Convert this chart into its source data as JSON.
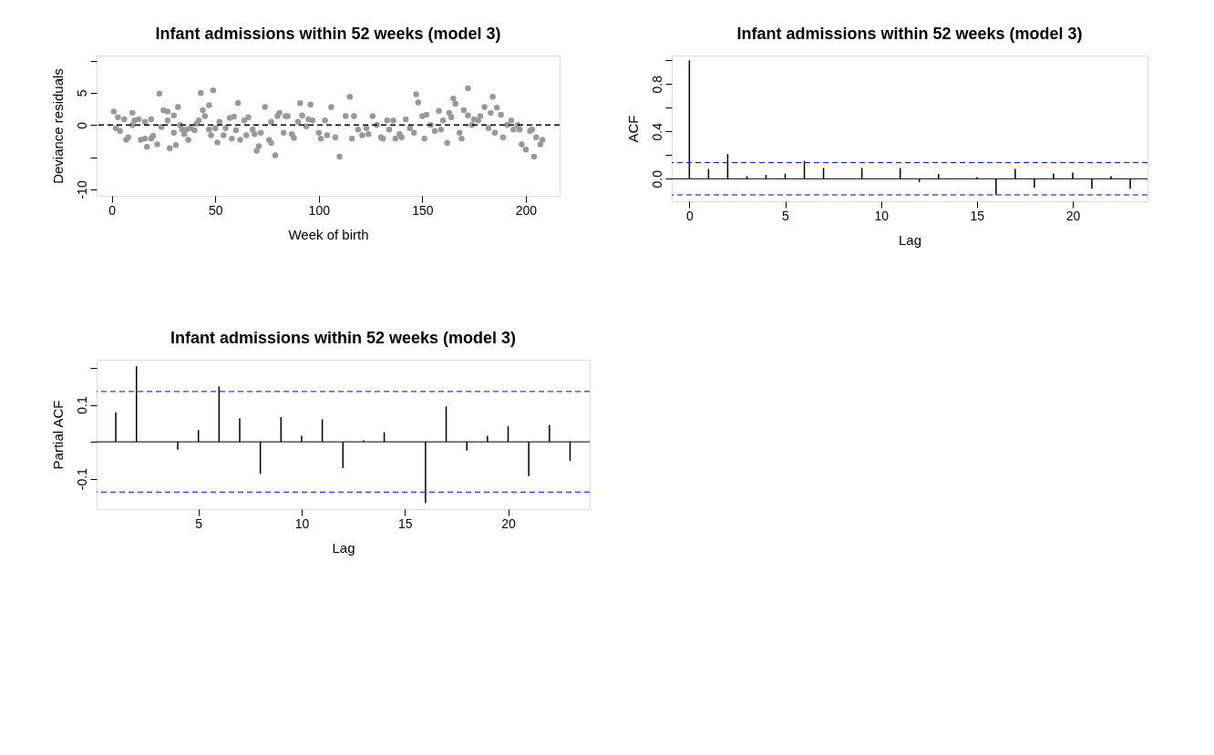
{
  "chart_data": [
    {
      "type": "scatter",
      "title": "Infant admissions within 52 weeks (model 3)",
      "xlabel": "Week of birth",
      "ylabel": "Deviance residuals",
      "color": "#999999",
      "marker": "circle",
      "x": [
        1,
        2,
        3,
        4,
        6,
        7,
        8,
        10,
        10,
        11,
        13,
        14,
        16,
        16,
        17,
        19,
        19,
        20,
        22,
        23,
        24,
        25,
        27,
        27,
        28,
        30,
        30,
        31,
        32,
        33,
        34,
        35,
        36,
        37,
        38,
        40,
        41,
        42,
        43,
        44,
        45,
        47,
        47,
        48,
        49,
        50,
        51,
        52,
        54,
        55,
        57,
        58,
        59,
        60,
        61,
        62,
        64,
        65,
        66,
        68,
        69,
        70,
        71,
        72,
        74,
        76,
        77,
        77,
        79,
        80,
        81,
        83,
        84,
        85,
        87,
        88,
        90,
        91,
        92,
        94,
        95,
        96,
        97,
        100,
        101,
        103,
        104,
        106,
        108,
        110,
        113,
        115,
        116,
        117,
        119,
        121,
        123,
        124,
        126,
        128,
        130,
        131,
        133,
        134,
        136,
        137,
        139,
        140,
        142,
        144,
        146,
        147,
        148,
        150,
        151,
        152,
        154,
        156,
        158,
        159,
        160,
        162,
        163,
        164,
        165,
        166,
        168,
        169,
        170,
        172,
        172,
        174,
        175,
        177,
        178,
        180,
        182,
        183,
        184,
        185,
        186,
        188,
        189,
        191,
        193,
        194,
        196,
        197,
        198,
        200,
        202,
        203,
        204,
        205,
        207,
        208
      ],
      "values": [
        2.1,
        -0.5,
        1.2,
        -0.9,
        0.9,
        -2.3,
        -1.9,
        0,
        1.9,
        0.7,
        0.9,
        -2.3,
        -2.1,
        0.5,
        -3.4,
        -2.1,
        0.9,
        -1.7,
        -3.0,
        4.9,
        -0.3,
        2.3,
        2.1,
        0.7,
        -3.6,
        1.5,
        -1.2,
        -3.1,
        2.8,
        0,
        -0.7,
        -1.4,
        -0.7,
        -2.3,
        -0.5,
        -0.8,
        0.2,
        0.7,
        5.0,
        2.3,
        1.4,
        3.1,
        -0.7,
        -1.6,
        5.4,
        -0.5,
        -2.7,
        0.5,
        -1.6,
        -0.5,
        1.1,
        -2.1,
        1.3,
        -0.8,
        3.4,
        -2.3,
        0.7,
        -1.6,
        1.2,
        -0.7,
        -1.4,
        -4.0,
        -3.3,
        -1.2,
        2.8,
        -2.3,
        -2.8,
        0.5,
        -4.7,
        1.4,
        1.9,
        -1.2,
        1.4,
        1.4,
        -1.4,
        -2.0,
        0.5,
        3.4,
        1.5,
        -0.2,
        0.9,
        3.2,
        0.7,
        -1.2,
        -2.1,
        0.7,
        -1.6,
        2.8,
        -1.9,
        -4.9,
        1.4,
        4.4,
        -2.1,
        1.4,
        -0.7,
        -1.6,
        -0.5,
        -1.4,
        1.4,
        0,
        -1.9,
        -2.1,
        0.7,
        -0.7,
        0.7,
        -2.1,
        -1.4,
        -1.9,
        0.9,
        -0.5,
        -1.2,
        4.8,
        3.5,
        1.4,
        -2.1,
        1.6,
        0,
        -0.9,
        2.2,
        -0.7,
        0.7,
        -2.8,
        1.9,
        1.2,
        4.1,
        3.3,
        -1.2,
        -2.1,
        2.3,
        5.7,
        1.5,
        0,
        0.9,
        0.7,
        1.4,
        2.8,
        -0.5,
        1.9,
        4.4,
        -1.2,
        2.7,
        1.6,
        -1.9,
        0,
        0.7,
        -0.7,
        0,
        -0.7,
        -3.0,
        -3.8,
        -0.9,
        -0.7,
        -4.9,
        -1.9,
        -3.0,
        -2.3
      ],
      "xlim": [
        -7.3,
        216.3
      ],
      "ylim": [
        -11,
        10.8
      ],
      "xticks": [
        0,
        50,
        100,
        150,
        200
      ],
      "yticks": [
        -10,
        {
          "value": -5,
          "label": null
        },
        0,
        5,
        {
          "value": 10,
          "label": null
        }
      ],
      "ref_lines": [
        {
          "axis": "y",
          "value": 0,
          "color": "#000000",
          "line_style": "dashed"
        }
      ]
    },
    {
      "type": "bar",
      "title": "Infant admissions within 52 weeks (model 3)",
      "xlabel": "Lag",
      "ylabel": "ACF",
      "color": "#000000",
      "x": [
        0,
        1,
        2,
        3,
        4,
        5,
        6,
        7,
        8,
        9,
        10,
        11,
        12,
        13,
        14,
        15,
        16,
        17,
        18,
        19,
        20,
        21,
        22,
        23
      ],
      "values": [
        1.0,
        0.083,
        0.209,
        0.022,
        0.033,
        0.044,
        0.152,
        0.091,
        null,
        0.091,
        null,
        0.091,
        -0.028,
        0.041,
        null,
        0.014,
        -0.135,
        0.083,
        -0.077,
        0.044,
        0.052,
        -0.085,
        0.022,
        -0.085
      ],
      "xlim": [
        -0.92,
        23.9
      ],
      "ylim": [
        -0.19,
        1.04
      ],
      "xticks": [
        0,
        5,
        10,
        15,
        20
      ],
      "yticks": [
        {
          "value": 0,
          "label": "0.0"
        },
        {
          "value": 0.2,
          "label": null
        },
        0.4,
        {
          "value": 0.6,
          "label": null
        },
        0.8,
        {
          "value": 1.0,
          "label": null
        }
      ],
      "ref_lines": [
        {
          "axis": "y",
          "value": 0,
          "color": "#000000",
          "line_style": "solid"
        },
        {
          "axis": "y",
          "value": 0.136,
          "color": "#0000ff",
          "line_style": "dashed"
        },
        {
          "axis": "y",
          "value": -0.136,
          "color": "#0000ff",
          "line_style": "dashed"
        }
      ]
    },
    {
      "type": "bar",
      "title": "Infant admissions within 52 weeks (model 3)",
      "xlabel": "Lag",
      "ylabel": "Partial ACF",
      "color": "#000000",
      "x": [
        1,
        2,
        3,
        4,
        5,
        6,
        7,
        8,
        9,
        10,
        11,
        12,
        13,
        14,
        15,
        16,
        17,
        18,
        19,
        20,
        21,
        22,
        23
      ],
      "values": [
        0.08,
        0.205,
        null,
        -0.021,
        0.032,
        0.15,
        0.064,
        -0.087,
        0.067,
        0.016,
        0.061,
        -0.071,
        0.004,
        0.026,
        null,
        -0.166,
        0.096,
        -0.024,
        0.016,
        0.042,
        -0.093,
        0.046,
        -0.052
      ],
      "xlim": [
        0.07,
        23.95
      ],
      "ylim": [
        -0.182,
        0.222
      ],
      "xticks": [
        5,
        10,
        15,
        20
      ],
      "yticks": [
        -0.1,
        {
          "value": 0,
          "label": null
        },
        0.1,
        {
          "value": 0.2,
          "label": null
        }
      ],
      "ref_lines": [
        {
          "axis": "y",
          "value": 0,
          "color": "#000000",
          "line_style": "solid"
        },
        {
          "axis": "y",
          "value": 0.136,
          "color": "#0000ff",
          "line_style": "dashed"
        },
        {
          "axis": "y",
          "value": -0.136,
          "color": "#0000ff",
          "line_style": "dashed"
        }
      ]
    }
  ]
}
